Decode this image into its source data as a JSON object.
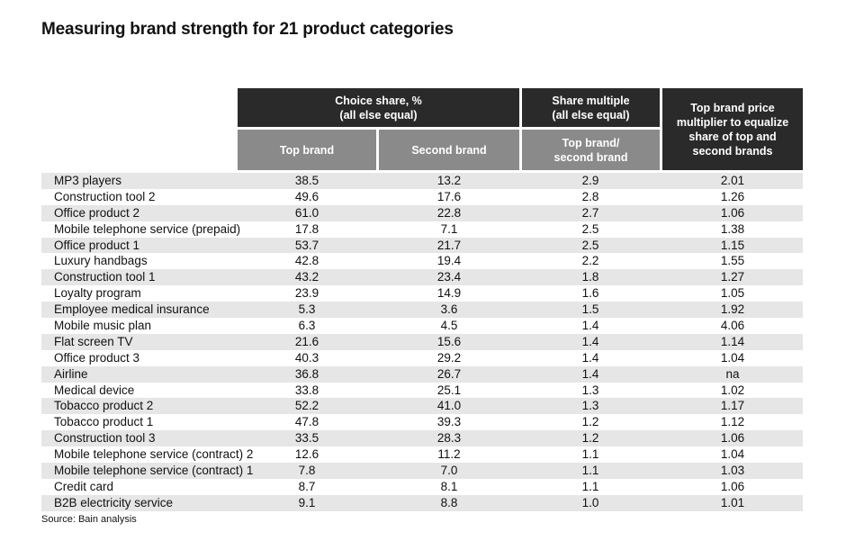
{
  "title": "Measuring brand strength for 21 product categories",
  "headers": {
    "choice_share": [
      "Choice share, %",
      "(all else equal)"
    ],
    "share_multiple": [
      "Share multiple",
      "(all else equal)"
    ],
    "price_multiplier": [
      "Top brand price",
      "multiplier to equalize",
      "share of top and",
      "second brands"
    ],
    "top_brand": [
      "Top brand"
    ],
    "second_brand": [
      "Second brand"
    ],
    "top_second": [
      "Top brand/",
      "second brand"
    ]
  },
  "rows": [
    {
      "name": "MP3 players",
      "top": "38.5",
      "second": "13.2",
      "multiple": "2.9",
      "price": "2.01"
    },
    {
      "name": "Construction tool  2",
      "top": "49.6",
      "second": "17.6",
      "multiple": "2.8",
      "price": "1.26"
    },
    {
      "name": "Office product 2",
      "top": "61.0",
      "second": "22.8",
      "multiple": "2.7",
      "price": "1.06"
    },
    {
      "name": "Mobile telephone service (prepaid)",
      "top": "17.8",
      "second": "7.1",
      "multiple": "2.5",
      "price": "1.38"
    },
    {
      "name": "Office product 1",
      "top": "53.7",
      "second": "21.7",
      "multiple": "2.5",
      "price": "1.15"
    },
    {
      "name": "Luxury handbags",
      "top": "42.8",
      "second": "19.4",
      "multiple": "2.2",
      "price": "1.55"
    },
    {
      "name": "Construction tool 1",
      "top": "43.2",
      "second": "23.4",
      "multiple": "1.8",
      "price": "1.27"
    },
    {
      "name": "Loyalty program",
      "top": "23.9",
      "second": "14.9",
      "multiple": "1.6",
      "price": "1.05"
    },
    {
      "name": "Employee medical insurance",
      "top": "5.3",
      "second": "3.6",
      "multiple": "1.5",
      "price": "1.92"
    },
    {
      "name": "Mobile music plan",
      "top": "6.3",
      "second": "4.5",
      "multiple": "1.4",
      "price": "4.06"
    },
    {
      "name": "Flat screen TV",
      "top": "21.6",
      "second": "15.6",
      "multiple": "1.4",
      "price": "1.14"
    },
    {
      "name": "Office product 3",
      "top": "40.3",
      "second": "29.2",
      "multiple": "1.4",
      "price": "1.04"
    },
    {
      "name": "Airline",
      "top": "36.8",
      "second": "26.7",
      "multiple": "1.4",
      "price": "na"
    },
    {
      "name": "Medical device",
      "top": "33.8",
      "second": "25.1",
      "multiple": "1.3",
      "price": "1.02"
    },
    {
      "name": "Tobacco product 2",
      "top": "52.2",
      "second": "41.0",
      "multiple": "1.3",
      "price": "1.17"
    },
    {
      "name": "Tobacco product 1",
      "top": "47.8",
      "second": "39.3",
      "multiple": "1.2",
      "price": "1.12"
    },
    {
      "name": "Construction tool 3",
      "top": "33.5",
      "second": "28.3",
      "multiple": "1.2",
      "price": "1.06"
    },
    {
      "name": "Mobile telephone service (contract) 2",
      "top": "12.6",
      "second": "11.2",
      "multiple": "1.1",
      "price": "1.04"
    },
    {
      "name": "Mobile telephone service (contract) 1",
      "top": "7.8",
      "second": "7.0",
      "multiple": "1.1",
      "price": "1.03"
    },
    {
      "name": "Credit card",
      "top": "8.7",
      "second": "8.1",
      "multiple": "1.1",
      "price": "1.06"
    },
    {
      "name": "B2B electricity service",
      "top": "9.1",
      "second": "8.8",
      "multiple": "1.0",
      "price": "1.01"
    }
  ],
  "source": "Source: Bain analysis",
  "colors": {
    "header_dark": "#2a2a2a",
    "header_grey": "#8a8a8a",
    "row_shade": "#e6e6e6"
  }
}
